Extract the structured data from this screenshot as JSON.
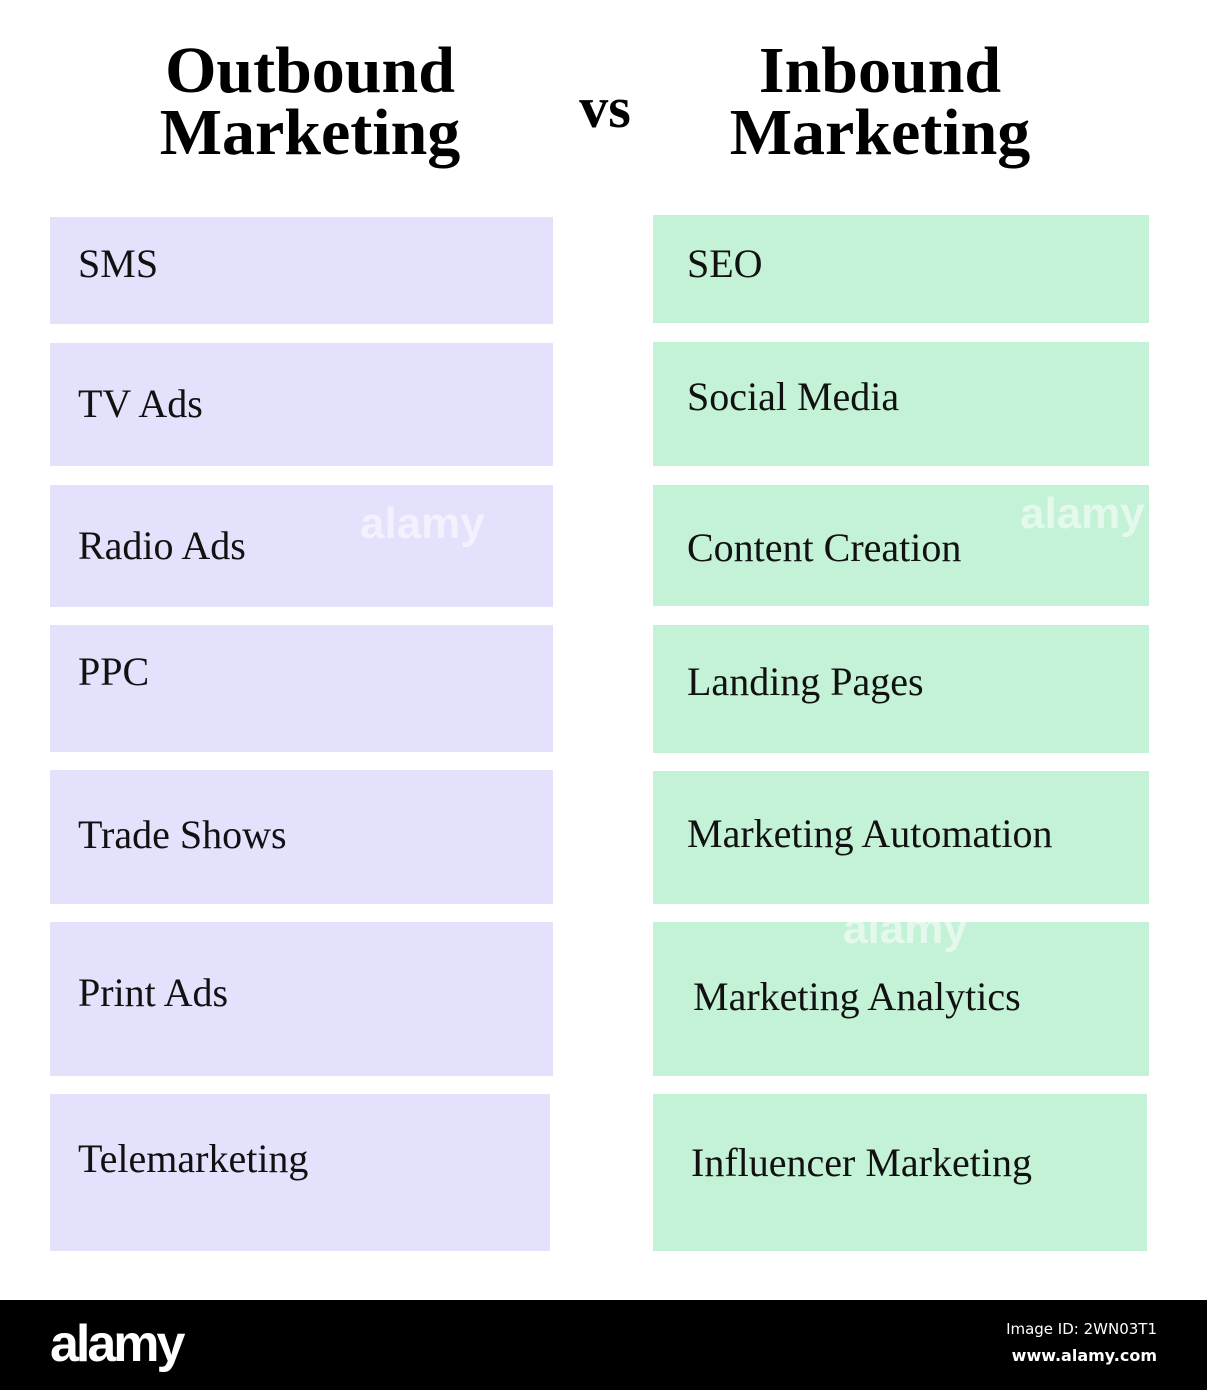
{
  "header": {
    "left_title": "Outbound Marketing",
    "vs": "vs",
    "right_title": "Inbound Marketing"
  },
  "outbound": [
    "SMS",
    "TV Ads",
    "Radio Ads",
    "PPC",
    "Trade Shows",
    "Print Ads",
    "Telemarketing"
  ],
  "inbound": [
    "SEO",
    "Social Media",
    "Content Creation",
    "Landing Pages",
    "Marketing Automation",
    "Marketing Analytics",
    "Influencer Marketing"
  ],
  "colors": {
    "outbound": "#e3e1fb",
    "inbound": "#c4f2d6",
    "footer": "#000000"
  },
  "watermark": "alamy",
  "footer": {
    "logo": "alamy",
    "image_id": "Image ID: 2WN03T1",
    "site": "www.alamy.com"
  }
}
